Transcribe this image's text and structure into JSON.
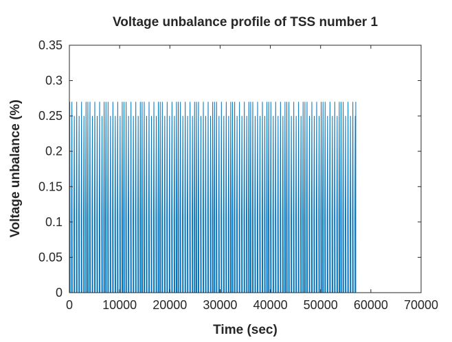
{
  "chart_data": {
    "type": "line",
    "title": "Voltage unbalance profile of TSS number 1",
    "xlabel": "Time (sec)",
    "ylabel": "Voltage unbalance (%)",
    "xlim": [
      0,
      70000
    ],
    "ylim": [
      0,
      0.35
    ],
    "x_ticks": [
      0,
      10000,
      20000,
      30000,
      40000,
      50000,
      60000,
      70000
    ],
    "x_tick_labels": [
      "0",
      "10000",
      "20000",
      "30000",
      "40000",
      "50000",
      "60000",
      "70000"
    ],
    "y_ticks": [
      0,
      0.05,
      0.1,
      0.15,
      0.2,
      0.25,
      0.3,
      0.35
    ],
    "y_tick_labels": [
      "0",
      "0.05",
      "0.1",
      "0.15",
      "0.2",
      "0.25",
      "0.3",
      "0.35"
    ],
    "grid": false,
    "series": [
      {
        "color": "#0072bd",
        "x_end": 57000,
        "cycle_length_sec": 3600,
        "cycle_offsets_sec": [
          0,
          420,
          900,
          1380,
          1860,
          2340,
          2820,
          3240
        ],
        "cycle_peaks": [
          0.27,
          0.27,
          0.25,
          0.27,
          0.25,
          0.27,
          0.25,
          0.27
        ],
        "baseline_value": 0.0,
        "low_level_value": 0.015,
        "mid_level_value": 0.105
      }
    ]
  }
}
